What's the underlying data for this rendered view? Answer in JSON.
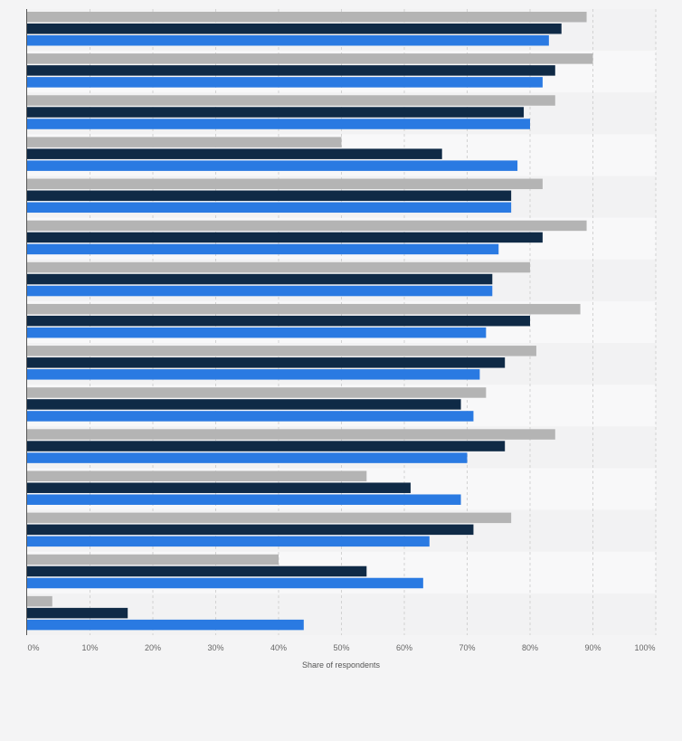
{
  "chart_data": {
    "type": "bar",
    "orientation": "horizontal",
    "xlabel": "Share of respondents",
    "xlim": [
      0,
      100
    ],
    "xticks": [
      "0%",
      "10%",
      "20%",
      "30%",
      "40%",
      "50%",
      "60%",
      "70%",
      "80%",
      "90%",
      "100%"
    ],
    "grid": true,
    "categories": [
      "",
      "",
      "",
      "",
      "",
      "",
      "",
      "",
      "",
      "",
      "",
      "",
      "",
      "",
      ""
    ],
    "series": [
      {
        "color": "#b4b4b4",
        "values": [
          89,
          90,
          84,
          50,
          82,
          89,
          80,
          88,
          81,
          73,
          84,
          54,
          77,
          40,
          4
        ]
      },
      {
        "color": "#0f2a46",
        "values": [
          85,
          84,
          79,
          66,
          77,
          82,
          74,
          80,
          76,
          69,
          76,
          61,
          71,
          54,
          16
        ]
      },
      {
        "color": "#2a7ae2",
        "values": [
          83,
          82,
          80,
          78,
          77,
          75,
          74,
          73,
          72,
          71,
          70,
          69,
          64,
          63,
          44
        ]
      }
    ]
  }
}
